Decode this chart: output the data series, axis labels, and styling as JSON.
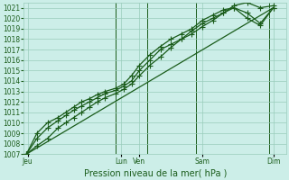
{
  "title": "",
  "xlabel": "Pression niveau de la mer( hPa )",
  "ylabel": "",
  "bg_color": "#cceee8",
  "line_color": "#1a5c1a",
  "grid_color": "#99ccbb",
  "tick_color": "#1a5c1a",
  "ylim": [
    1007,
    1021.5
  ],
  "ytick_min": 1007,
  "ytick_max": 1021,
  "xlim_min": 0,
  "xlim_max": 10,
  "xtick_positions": [
    0.15,
    3.7,
    4.4,
    6.8,
    9.5
  ],
  "xtick_labels": [
    "Jeu",
    "Lun",
    "Ven",
    "Sam",
    "Dim"
  ],
  "vline_x": [
    3.5,
    4.7,
    6.55,
    9.35
  ],
  "line1_x": [
    0.1,
    0.5,
    0.9,
    1.3,
    1.6,
    1.9,
    2.2,
    2.5,
    2.8,
    3.1,
    3.5,
    3.8,
    4.1,
    4.4,
    4.8,
    5.2,
    5.6,
    6.0,
    6.4,
    6.8,
    7.2,
    7.6,
    8.0,
    8.5,
    9.0,
    9.5
  ],
  "line1_y": [
    1007.0,
    1008.5,
    1009.5,
    1010.2,
    1010.7,
    1011.2,
    1011.6,
    1012.0,
    1012.4,
    1012.8,
    1013.1,
    1013.5,
    1014.0,
    1015.0,
    1016.0,
    1017.0,
    1017.5,
    1018.0,
    1018.5,
    1019.2,
    1019.8,
    1020.5,
    1021.2,
    1021.5,
    1021.0,
    1021.2
  ],
  "line2_x": [
    0.1,
    0.5,
    0.9,
    1.3,
    1.6,
    1.9,
    2.2,
    2.5,
    2.8,
    3.1,
    3.5,
    3.8,
    4.1,
    4.4,
    4.8,
    5.2,
    5.6,
    6.0,
    6.4,
    6.8,
    7.2,
    7.6,
    8.0,
    8.5,
    9.0,
    9.5
  ],
  "line2_y": [
    1007.0,
    1009.0,
    1010.0,
    1010.5,
    1011.0,
    1011.5,
    1012.0,
    1012.3,
    1012.7,
    1013.0,
    1013.3,
    1013.7,
    1014.5,
    1015.5,
    1016.5,
    1017.3,
    1018.0,
    1018.5,
    1019.0,
    1019.8,
    1020.3,
    1020.8,
    1021.0,
    1020.5,
    1019.5,
    1021.0
  ],
  "line3_x": [
    0.1,
    0.5,
    0.9,
    1.3,
    1.6,
    1.9,
    2.2,
    2.5,
    2.8,
    3.1,
    3.5,
    3.8,
    4.1,
    4.4,
    4.8,
    5.2,
    5.6,
    6.0,
    6.4,
    6.8,
    7.2,
    7.6,
    8.0,
    8.5,
    9.0,
    9.5
  ],
  "line3_y": [
    1007.0,
    1007.8,
    1008.5,
    1009.5,
    1010.0,
    1010.5,
    1011.0,
    1011.5,
    1012.0,
    1012.4,
    1012.8,
    1013.2,
    1013.7,
    1014.5,
    1015.5,
    1016.3,
    1017.2,
    1018.0,
    1018.8,
    1019.5,
    1020.0,
    1020.5,
    1021.0,
    1020.0,
    1019.3,
    1021.0
  ],
  "trend_x": [
    0.1,
    9.5
  ],
  "trend_y": [
    1007.0,
    1021.0
  ],
  "marker": "+",
  "markersize": 4,
  "linewidth": 0.9,
  "tick_fontsize": 5.5,
  "xlabel_fontsize": 7
}
